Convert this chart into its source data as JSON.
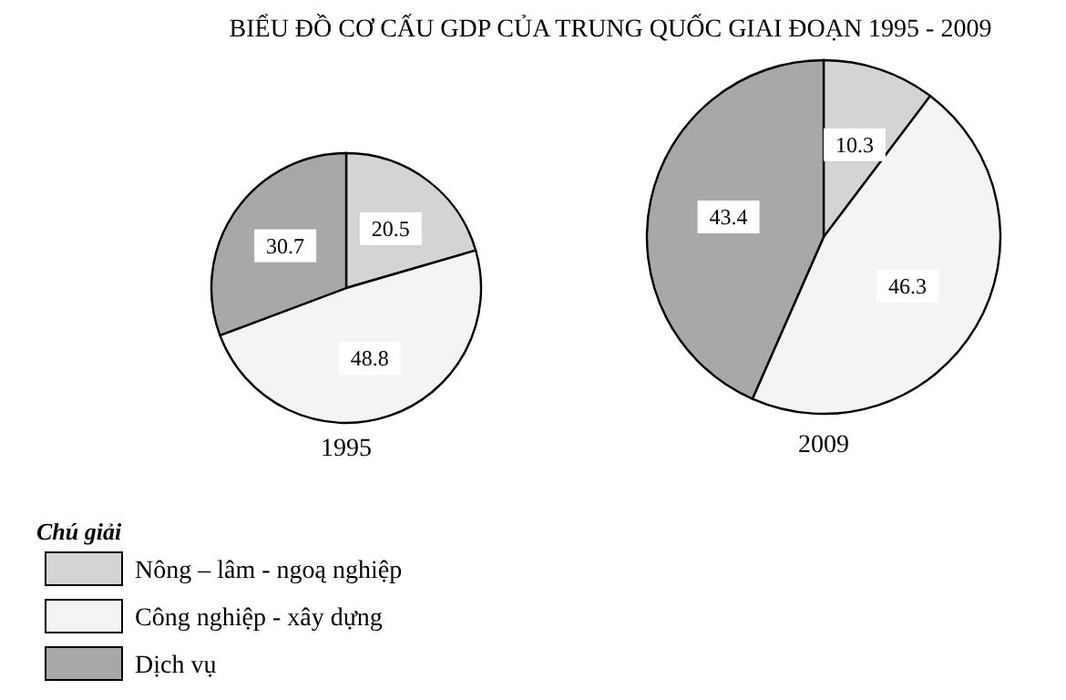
{
  "chart_data": [
    {
      "type": "pie",
      "title": "BIỂU ĐỒ CƠ CẤU GDP CỦA TRUNG QUỐC GIAI ĐOẠN 1995 - 2009",
      "xlabel": "1995",
      "categories": [
        "Nông – lâm - ngoą nghiệp",
        "Công nghiệp - xây dựng",
        "Dịch vụ"
      ],
      "values": [
        20.5,
        48.8,
        30.7
      ],
      "colors": [
        "#d4d4d4",
        "#f4f4f4",
        "#a8a8a8"
      ],
      "data_labels": true,
      "legend": "bottom left",
      "legend_title": "Chú giải"
    },
    {
      "type": "pie",
      "xlabel": "2009",
      "categories": [
        null,
        null,
        null
      ],
      "values": [
        10.3,
        46.3,
        43.4
      ],
      "colors": [
        "#d4d4d4",
        "#f4f4f4",
        "#a8a8a8"
      ],
      "data_labels": true
    }
  ]
}
